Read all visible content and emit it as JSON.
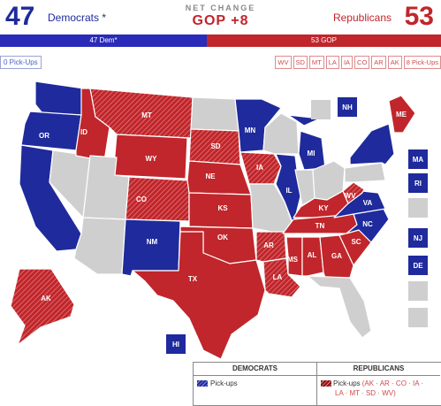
{
  "header": {
    "dem_count": "47",
    "dem_label": "Democrats *",
    "net_title": "NET CHANGE",
    "net_value": "GOP +8",
    "rep_label": "Republicans",
    "rep_count": "53"
  },
  "bar": {
    "dem": "47 Dem*",
    "rep": "53 GOP"
  },
  "pickups": {
    "dem": "0 Pick-Ups",
    "rep_states": [
      "WV",
      "SD",
      "MT",
      "LA",
      "IA",
      "CO",
      "AR",
      "AK"
    ],
    "rep_label": "8 Pick-Ups"
  },
  "colors": {
    "dem": "#1f2a9c",
    "rep": "#c0262b",
    "none": "#cfcfcf",
    "border": "#ffffff"
  },
  "states": [
    {
      "abbr": "WA",
      "party": "dem",
      "label": ""
    },
    {
      "abbr": "OR",
      "party": "dem",
      "label": "OR"
    },
    {
      "abbr": "CA",
      "party": "dem",
      "label": ""
    },
    {
      "abbr": "NV",
      "party": "none",
      "label": ""
    },
    {
      "abbr": "ID",
      "party": "rep",
      "label": "ID"
    },
    {
      "abbr": "MT",
      "party": "rep-pickup",
      "label": "MT"
    },
    {
      "abbr": "WY",
      "party": "rep",
      "label": "WY"
    },
    {
      "abbr": "UT",
      "party": "none",
      "label": ""
    },
    {
      "abbr": "AZ",
      "party": "none",
      "label": ""
    },
    {
      "abbr": "CO",
      "party": "rep-pickup",
      "label": "CO"
    },
    {
      "abbr": "NM",
      "party": "dem",
      "label": "NM"
    },
    {
      "abbr": "ND",
      "party": "none",
      "label": ""
    },
    {
      "abbr": "SD",
      "party": "rep-pickup",
      "label": "SD"
    },
    {
      "abbr": "NE",
      "party": "rep",
      "label": "NE"
    },
    {
      "abbr": "KS",
      "party": "rep",
      "label": "KS"
    },
    {
      "abbr": "OK",
      "party": "rep",
      "label": "OK"
    },
    {
      "abbr": "TX",
      "party": "rep",
      "label": "TX"
    },
    {
      "abbr": "MN",
      "party": "dem",
      "label": "MN"
    },
    {
      "abbr": "IA",
      "party": "rep-pickup",
      "label": "IA"
    },
    {
      "abbr": "MO",
      "party": "none",
      "label": ""
    },
    {
      "abbr": "AR",
      "party": "rep-pickup",
      "label": "AR"
    },
    {
      "abbr": "LA",
      "party": "rep-pickup",
      "label": "LA"
    },
    {
      "abbr": "WI",
      "party": "none",
      "label": ""
    },
    {
      "abbr": "IL",
      "party": "dem",
      "label": "IL"
    },
    {
      "abbr": "MI",
      "party": "dem",
      "label": "MI"
    },
    {
      "abbr": "IN",
      "party": "none",
      "label": ""
    },
    {
      "abbr": "OH",
      "party": "none",
      "label": ""
    },
    {
      "abbr": "KY",
      "party": "rep",
      "label": "KY"
    },
    {
      "abbr": "TN",
      "party": "rep",
      "label": "TN"
    },
    {
      "abbr": "MS",
      "party": "rep",
      "label": "MS"
    },
    {
      "abbr": "AL",
      "party": "rep",
      "label": "AL"
    },
    {
      "abbr": "GA",
      "party": "rep",
      "label": "GA"
    },
    {
      "abbr": "FL",
      "party": "none",
      "label": ""
    },
    {
      "abbr": "SC",
      "party": "rep",
      "label": "SC"
    },
    {
      "abbr": "NC",
      "party": "dem",
      "label": "NC"
    },
    {
      "abbr": "VA",
      "party": "dem",
      "label": "VA"
    },
    {
      "abbr": "WV",
      "party": "rep-pickup",
      "label": "WV"
    },
    {
      "abbr": "PA",
      "party": "none",
      "label": ""
    },
    {
      "abbr": "NY",
      "party": "dem",
      "label": ""
    },
    {
      "abbr": "ME",
      "party": "rep",
      "label": "ME"
    },
    {
      "abbr": "AK",
      "party": "rep-pickup",
      "label": "AK"
    },
    {
      "abbr": "HI",
      "party": "dem",
      "label": "HI"
    }
  ],
  "squares": [
    {
      "label": "",
      "party": "none"
    },
    {
      "label": "NH",
      "party": "dem"
    },
    {
      "label": "MA",
      "party": "dem"
    },
    {
      "label": "RI",
      "party": "dem"
    },
    {
      "label": "",
      "party": "none"
    },
    {
      "label": "NJ",
      "party": "dem"
    },
    {
      "label": "DE",
      "party": "dem"
    },
    {
      "label": "",
      "party": "none"
    },
    {
      "label": "",
      "party": "none"
    },
    {
      "label": "HI",
      "party": "dem"
    }
  ],
  "legend": {
    "dem_head": "DEMOCRATS",
    "rep_head": "REPUBLICANS",
    "dem_pickups": "Pick-ups",
    "rep_pickups_prefix": "Pick-ups",
    "rep_pickups_states_line1": "(AK · AR · CO · IA ·",
    "rep_pickups_states_line2": "LA · MT · SD · WV)"
  }
}
